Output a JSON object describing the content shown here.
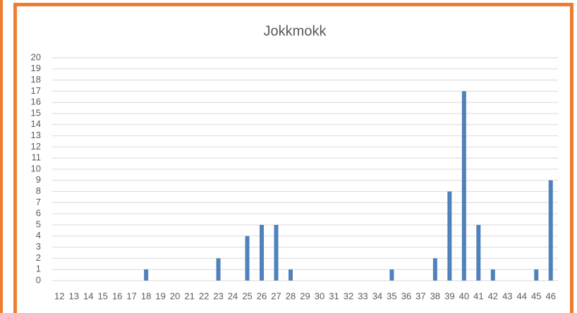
{
  "chart_data": {
    "type": "bar",
    "title": "Jokkmokk",
    "categories": [
      "12",
      "13",
      "14",
      "15",
      "16",
      "17",
      "18",
      "19",
      "20",
      "21",
      "22",
      "23",
      "24",
      "25",
      "26",
      "27",
      "28",
      "29",
      "30",
      "31",
      "32",
      "33",
      "34",
      "35",
      "36",
      "37",
      "38",
      "39",
      "40",
      "41",
      "42",
      "43",
      "44",
      "45",
      "46"
    ],
    "values": [
      0,
      0,
      0,
      0,
      0,
      0,
      1,
      0,
      0,
      0,
      0,
      2,
      0,
      4,
      5,
      5,
      1,
      0,
      0,
      0,
      0,
      0,
      0,
      1,
      0,
      0,
      2,
      8,
      17,
      5,
      1,
      0,
      0,
      1,
      9
    ],
    "color": "#4f81bd",
    "ylim": [
      0,
      20
    ],
    "yticks": [
      0,
      1,
      2,
      3,
      4,
      5,
      6,
      7,
      8,
      9,
      10,
      11,
      12,
      13,
      14,
      15,
      16,
      17,
      18,
      19,
      20
    ],
    "grid": true
  }
}
